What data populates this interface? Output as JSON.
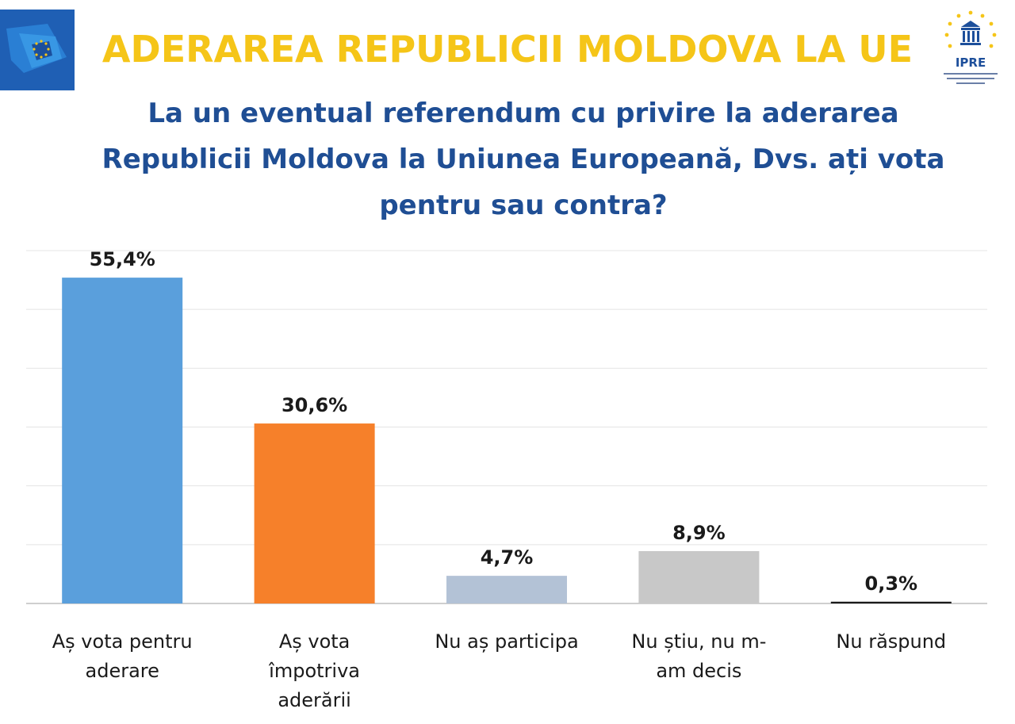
{
  "header": {
    "title": "ADERAREA REPUBLICII MOLDOVA LA UE",
    "question_lines": [
      "La un eventual referendum cu privire la aderarea",
      "Republicii Moldova la Uniunea Europeană, Dvs. ați vota",
      "pentru sau contra?"
    ],
    "ipre_logo_text": "IPRE",
    "colors": {
      "title": "#f5c518",
      "question": "#1f4e94",
      "eu_logo_bg": "#1f5fb4"
    }
  },
  "chart_data": {
    "type": "bar",
    "title": "La un eventual referendum cu privire la aderarea Republicii Moldova la Uniunea Europeană, Dvs. ați vota pentru sau contra?",
    "xlabel": "",
    "ylabel": "",
    "ylim": [
      0,
      60
    ],
    "grid": true,
    "legend": "none",
    "categories": [
      [
        "Aș vota pentru",
        "aderare"
      ],
      [
        "Aș vota",
        "împotriva",
        "aderării"
      ],
      [
        "Nu aș participa"
      ],
      [
        "Nu știu, nu m-",
        "am decis"
      ],
      [
        "Nu răspund"
      ]
    ],
    "values": [
      55.4,
      30.6,
      4.7,
      8.9,
      0.3
    ],
    "value_labels": [
      "55,4%",
      "30,6%",
      "4,7%",
      "8,9%",
      "0,3%"
    ],
    "colors": [
      "#5a9fdc",
      "#f6802a",
      "#b3c2d6",
      "#c8c8c8",
      "#1a1a1a"
    ]
  }
}
